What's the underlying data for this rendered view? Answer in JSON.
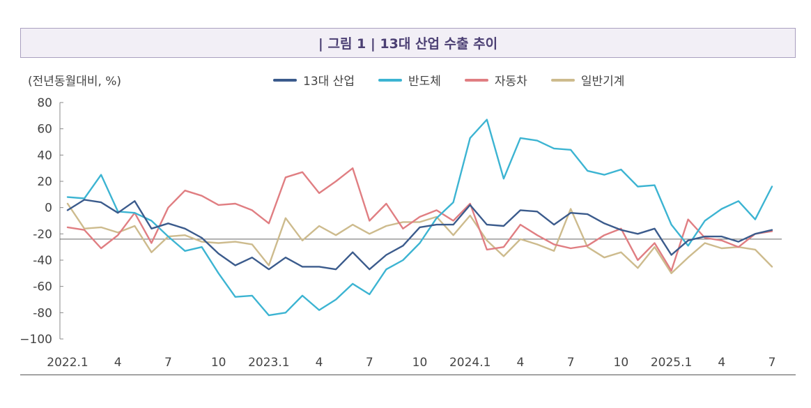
{
  "chart_data": {
    "type": "line",
    "title": "| 그림 1 | 13대 산업 수출 추이",
    "ylabel": "(전년동월대비, %)",
    "xlabel": "",
    "ylim": [
      -100,
      80
    ],
    "yticks": [
      80,
      60,
      40,
      20,
      0,
      -20,
      -40,
      -60,
      -80,
      -100
    ],
    "ytick_labels": [
      "80",
      "60",
      "40",
      "20",
      "0",
      "-20",
      "-40",
      "-60",
      "-80",
      "−100"
    ],
    "reference_line": -24,
    "xtick_labels": [
      {
        "index": 0,
        "label": "2022.1"
      },
      {
        "index": 3,
        "label": "4"
      },
      {
        "index": 6,
        "label": "7"
      },
      {
        "index": 9,
        "label": "10"
      },
      {
        "index": 12,
        "label": "2023.1"
      },
      {
        "index": 15,
        "label": "4"
      },
      {
        "index": 18,
        "label": "7"
      },
      {
        "index": 21,
        "label": "10"
      },
      {
        "index": 24,
        "label": "2024.1"
      },
      {
        "index": 27,
        "label": "4"
      },
      {
        "index": 30,
        "label": "7"
      },
      {
        "index": 33,
        "label": "10"
      },
      {
        "index": 36,
        "label": "2025.1"
      },
      {
        "index": 39,
        "label": "4"
      },
      {
        "index": 42,
        "label": "7"
      }
    ],
    "series": [
      {
        "name": "13대 산업",
        "color": "#3b5b8c",
        "values": [
          -2,
          6,
          4,
          -4,
          5,
          -16,
          -12,
          -16,
          -23,
          -35,
          -44,
          -38,
          -47,
          -38,
          -45,
          -45,
          -47,
          -34,
          -47,
          -36,
          -29,
          -15,
          -13,
          -13,
          2,
          -13,
          -14,
          -2,
          -3,
          -13,
          -4,
          -5,
          -12,
          -17,
          -20,
          -16,
          -36,
          -25,
          -22,
          -22,
          -26,
          -20,
          -17
        ]
      },
      {
        "name": "반도체",
        "color": "#3cb4d2",
        "values": [
          8,
          7,
          25,
          -3,
          -4,
          -10,
          -22,
          -33,
          -30,
          -50,
          -68,
          -67,
          -82,
          -80,
          -67,
          -78,
          -70,
          -58,
          -66,
          -47,
          -40,
          -27,
          -8,
          4,
          53,
          67,
          22,
          53,
          51,
          45,
          44,
          28,
          25,
          29,
          16,
          17,
          -13,
          -29,
          -10,
          -1,
          5,
          -9,
          16
        ]
      },
      {
        "name": "자동차",
        "color": "#e07e82",
        "values": [
          -15,
          -17,
          -31,
          -21,
          -4,
          -27,
          0,
          13,
          9,
          2,
          3,
          -2,
          -12,
          23,
          27,
          11,
          20,
          30,
          -10,
          3,
          -16,
          -7,
          -2,
          -10,
          3,
          -32,
          -30,
          -13,
          -21,
          -28,
          -31,
          -29,
          -21,
          -16,
          -40,
          -27,
          -48,
          -9,
          -23,
          -25,
          -30,
          -20,
          -18
        ]
      },
      {
        "name": "일반기계",
        "color": "#cdbb8d",
        "values": [
          3,
          -16,
          -15,
          -19,
          -14,
          -34,
          -22,
          -21,
          -26,
          -27,
          -26,
          -28,
          -44,
          -8,
          -25,
          -14,
          -21,
          -13,
          -20,
          -14,
          -11,
          -11,
          -7,
          -21,
          -6,
          -25,
          -37,
          -24,
          -28,
          -33,
          -1,
          -30,
          -38,
          -34,
          -46,
          -30,
          -50,
          -38,
          -27,
          -31,
          -30,
          -32,
          -45
        ]
      }
    ]
  }
}
